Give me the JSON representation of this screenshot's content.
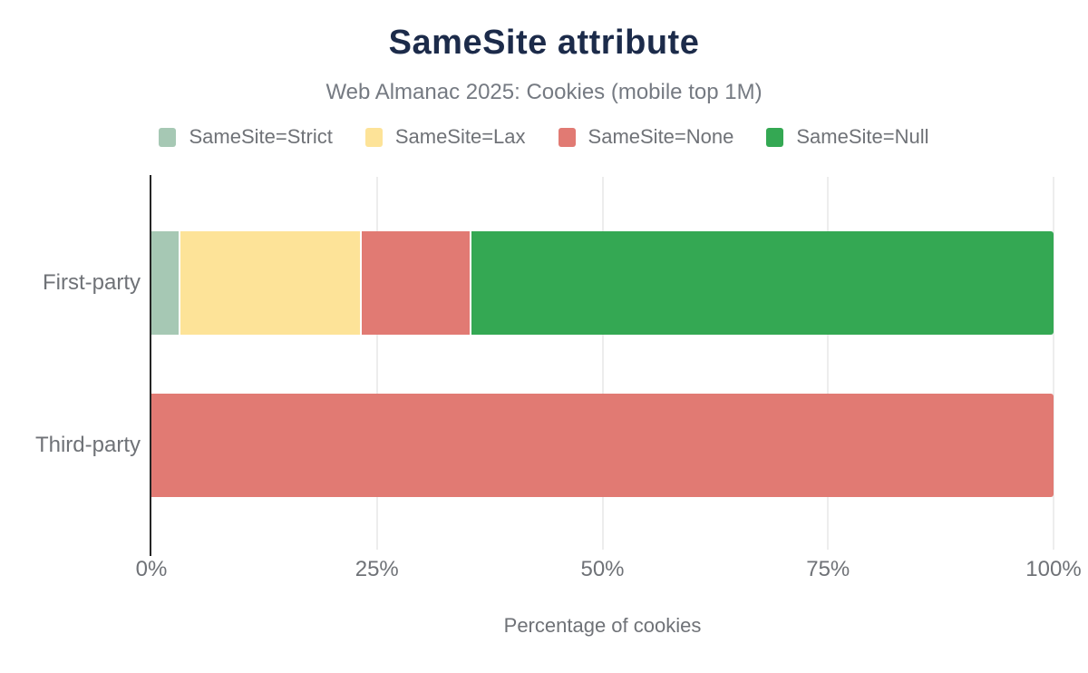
{
  "header": {
    "title": "SameSite attribute",
    "subtitle": "Web Almanac 2025: Cookies (mobile top 1M)"
  },
  "colors": {
    "title": "#1c2b4a",
    "subtitle": "#757a82",
    "muted_text": "#6f7277",
    "axis_line": "#262626",
    "gridline": "#ededed",
    "strict": "#a6c8b4",
    "lax": "#fde398",
    "none": "#e17a73",
    "null": "#34a853"
  },
  "chart_data": {
    "type": "bar",
    "orientation": "horizontal",
    "stacked": true,
    "title": "SameSite attribute",
    "subtitle": "Web Almanac 2025: Cookies (mobile top 1M)",
    "categories": [
      "First-party",
      "Third-party"
    ],
    "series": [
      {
        "name": "SameSite=Strict",
        "color": "#a6c8b4",
        "values": [
          3,
          0
        ]
      },
      {
        "name": "SameSite=Lax",
        "color": "#fde398",
        "values": [
          20.1,
          0
        ]
      },
      {
        "name": "SameSite=None",
        "color": "#e17a73",
        "values": [
          12,
          100
        ]
      },
      {
        "name": "SameSite=Null",
        "color": "#34a853",
        "values": [
          64.9,
          0
        ]
      }
    ],
    "xlabel": "Percentage of cookies",
    "ylabel": "",
    "xlim": [
      0,
      100
    ],
    "xticks": [
      "0%",
      "25%",
      "50%",
      "75%",
      "100%"
    ],
    "legend_position": "top",
    "grid": true
  }
}
